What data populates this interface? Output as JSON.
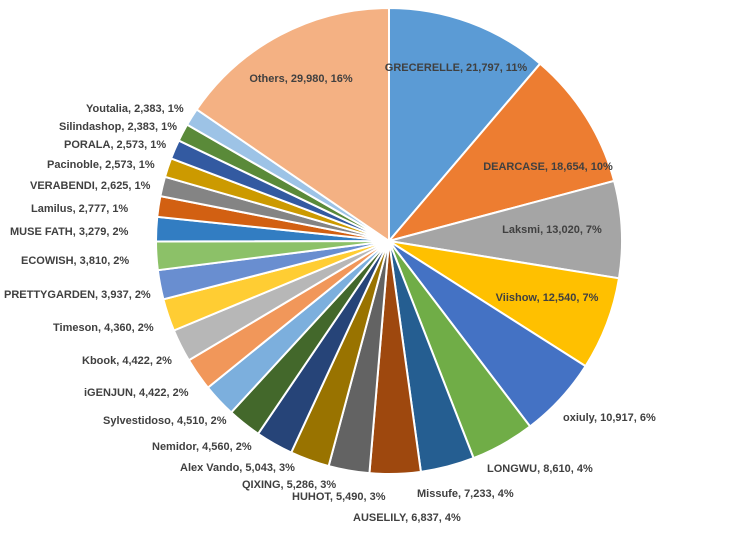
{
  "chart_data": {
    "type": "pie",
    "title": "",
    "slices": [
      {
        "label": "GRECERELLE",
        "value": 21797,
        "percent": "11%",
        "color": "#5b9bd5"
      },
      {
        "label": "DEARCASE",
        "value": 18654,
        "percent": "10%",
        "color": "#ed7d31"
      },
      {
        "label": "Laksmi",
        "value": 13020,
        "percent": "7%",
        "color": "#a5a5a5"
      },
      {
        "label": "Viishow",
        "value": 12540,
        "percent": "7%",
        "color": "#ffc000"
      },
      {
        "label": "oxiuly",
        "value": 10917,
        "percent": "6%",
        "color": "#4472c4"
      },
      {
        "label": "LONGWU",
        "value": 8610,
        "percent": "4%",
        "color": "#70ad47"
      },
      {
        "label": "Missufe",
        "value": 7233,
        "percent": "4%",
        "color": "#255e91"
      },
      {
        "label": "AUSELILY",
        "value": 6837,
        "percent": "4%",
        "color": "#9e480e"
      },
      {
        "label": "HUHOT",
        "value": 5490,
        "percent": "3%",
        "color": "#636363"
      },
      {
        "label": "QIXING",
        "value": 5286,
        "percent": "3%",
        "color": "#997300"
      },
      {
        "label": "Alex Vando",
        "value": 5043,
        "percent": "3%",
        "color": "#264478"
      },
      {
        "label": "Nemidor",
        "value": 4560,
        "percent": "2%",
        "color": "#43682b"
      },
      {
        "label": "Sylvestidoso",
        "value": 4510,
        "percent": "2%",
        "color": "#7cafdd"
      },
      {
        "label": "iGENJUN",
        "value": 4422,
        "percent": "2%",
        "color": "#f1975a"
      },
      {
        "label": "Kbook",
        "value": 4422,
        "percent": "2%",
        "color": "#b7b7b7"
      },
      {
        "label": "Timeson",
        "value": 4360,
        "percent": "2%",
        "color": "#ffcd33"
      },
      {
        "label": "PRETTYGARDEN",
        "value": 3937,
        "percent": "2%",
        "color": "#698ed0"
      },
      {
        "label": "ECOWISH",
        "value": 3810,
        "percent": "2%",
        "color": "#8cc168"
      },
      {
        "label": "MUSE FATH",
        "value": 3279,
        "percent": "2%",
        "color": "#327dc2"
      },
      {
        "label": "Lamilus",
        "value": 2777,
        "percent": "1%",
        "color": "#d26012"
      },
      {
        "label": "VERABENDI",
        "value": 2625,
        "percent": "1%",
        "color": "#848484"
      },
      {
        "label": "Pacinoble",
        "value": 2573,
        "percent": "1%",
        "color": "#cc9a00"
      },
      {
        "label": "PORALA",
        "value": 2573,
        "percent": "1%",
        "color": "#335aa1"
      },
      {
        "label": "Silindashop",
        "value": 2383,
        "percent": "1%",
        "color": "#5a8a39"
      },
      {
        "label": "Youtalia",
        "value": 2383,
        "percent": "1%",
        "color": "#9dc3e6"
      },
      {
        "label": "Others",
        "value": 29980,
        "percent": "16%",
        "color": "#f4b183"
      }
    ]
  }
}
